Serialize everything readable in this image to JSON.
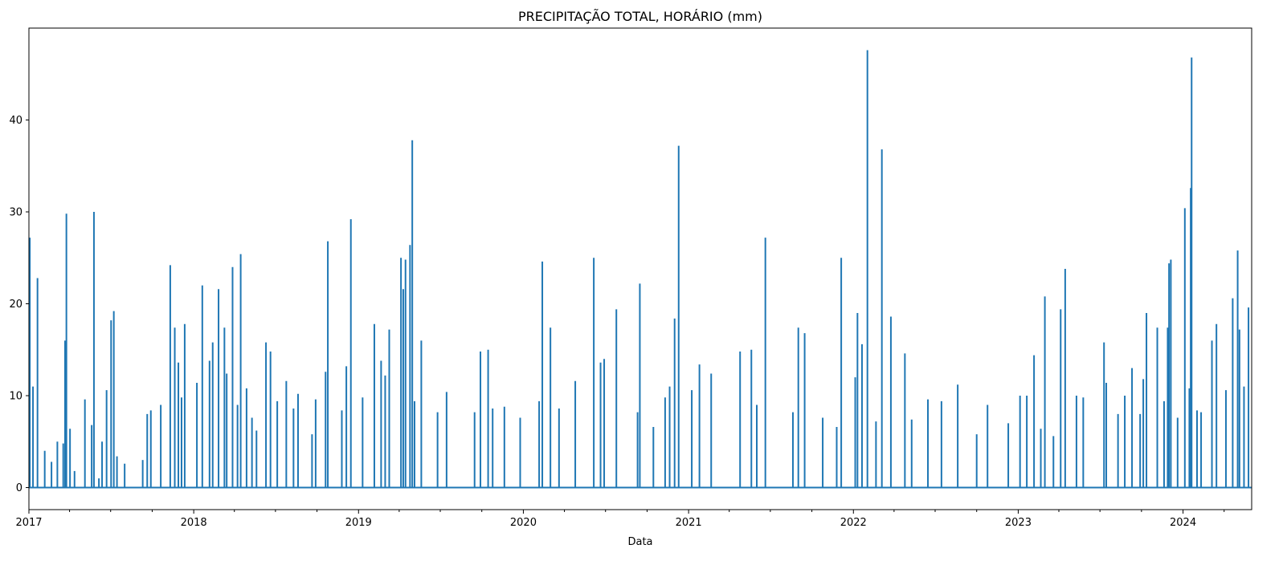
{
  "chart_data": {
    "type": "line",
    "title": "PRECIPITAÇÃO TOTAL, HORÁRIO (mm)",
    "xlabel": "Data",
    "ylabel": "",
    "grid": false,
    "legend": "none",
    "series_color": "#1f77b4",
    "x_range": [
      "2017-01-01",
      "2024-06-01"
    ],
    "ylim": [
      -2.4,
      50
    ],
    "x_ticks": [
      "2017",
      "2018",
      "2019",
      "2020",
      "2021",
      "2022",
      "2023",
      "2024"
    ],
    "y_ticks": [
      0,
      10,
      20,
      30,
      40
    ],
    "series": [
      {
        "peaks": [
          [
            "2017-01-03",
            27.2
          ],
          [
            "2017-01-10",
            11.0
          ],
          [
            "2017-01-20",
            22.8
          ],
          [
            "2017-02-05",
            4.0
          ],
          [
            "2017-02-20",
            2.8
          ],
          [
            "2017-03-05",
            5.0
          ],
          [
            "2017-03-18",
            4.8
          ],
          [
            "2017-03-22",
            16.0
          ],
          [
            "2017-03-25",
            29.8
          ],
          [
            "2017-04-02",
            6.4
          ],
          [
            "2017-04-12",
            1.8
          ],
          [
            "2017-05-05",
            9.6
          ],
          [
            "2017-05-20",
            6.8
          ],
          [
            "2017-05-25",
            30.0
          ],
          [
            "2017-06-05",
            1.0
          ],
          [
            "2017-06-12",
            5.0
          ],
          [
            "2017-06-22",
            10.6
          ],
          [
            "2017-07-02",
            18.2
          ],
          [
            "2017-07-08",
            19.2
          ],
          [
            "2017-07-15",
            3.4
          ],
          [
            "2017-08-01",
            2.6
          ],
          [
            "2017-09-10",
            3.0
          ],
          [
            "2017-09-20",
            8.0
          ],
          [
            "2017-09-28",
            8.4
          ],
          [
            "2017-10-20",
            9.0
          ],
          [
            "2017-11-10",
            24.2
          ],
          [
            "2017-11-20",
            17.4
          ],
          [
            "2017-11-28",
            13.6
          ],
          [
            "2017-12-05",
            9.8
          ],
          [
            "2017-12-12",
            17.8
          ],
          [
            "2018-01-08",
            11.4
          ],
          [
            "2018-01-20",
            22.0
          ],
          [
            "2018-02-05",
            13.8
          ],
          [
            "2018-02-12",
            15.8
          ],
          [
            "2018-02-25",
            21.6
          ],
          [
            "2018-03-10",
            17.4
          ],
          [
            "2018-03-15",
            12.4
          ],
          [
            "2018-03-28",
            24.0
          ],
          [
            "2018-04-08",
            9.0
          ],
          [
            "2018-04-15",
            25.4
          ],
          [
            "2018-04-28",
            10.8
          ],
          [
            "2018-05-10",
            7.6
          ],
          [
            "2018-05-20",
            6.2
          ],
          [
            "2018-06-10",
            15.8
          ],
          [
            "2018-06-20",
            14.8
          ],
          [
            "2018-07-05",
            9.4
          ],
          [
            "2018-07-25",
            11.6
          ],
          [
            "2018-08-10",
            8.6
          ],
          [
            "2018-08-20",
            10.2
          ],
          [
            "2018-09-20",
            5.8
          ],
          [
            "2018-09-28",
            9.6
          ],
          [
            "2018-10-20",
            12.6
          ],
          [
            "2018-10-25",
            26.8
          ],
          [
            "2018-11-25",
            8.4
          ],
          [
            "2018-12-05",
            13.2
          ],
          [
            "2018-12-15",
            29.2
          ],
          [
            "2019-01-10",
            9.8
          ],
          [
            "2019-02-05",
            17.8
          ],
          [
            "2019-02-20",
            13.8
          ],
          [
            "2019-03-01",
            12.2
          ],
          [
            "2019-03-10",
            17.2
          ],
          [
            "2019-04-05",
            25.0
          ],
          [
            "2019-04-10",
            21.6
          ],
          [
            "2019-04-15",
            24.8
          ],
          [
            "2019-04-25",
            26.4
          ],
          [
            "2019-04-30",
            37.8
          ],
          [
            "2019-05-05",
            9.4
          ],
          [
            "2019-05-20",
            16.0
          ],
          [
            "2019-06-25",
            8.2
          ],
          [
            "2019-07-15",
            10.4
          ],
          [
            "2019-09-15",
            8.2
          ],
          [
            "2019-09-28",
            14.8
          ],
          [
            "2019-10-15",
            15.0
          ],
          [
            "2019-10-25",
            8.6
          ],
          [
            "2019-11-20",
            8.8
          ],
          [
            "2019-12-25",
            7.6
          ],
          [
            "2020-02-05",
            9.4
          ],
          [
            "2020-02-12",
            24.6
          ],
          [
            "2020-03-01",
            17.4
          ],
          [
            "2020-03-20",
            8.6
          ],
          [
            "2020-04-25",
            11.6
          ],
          [
            "2020-06-05",
            25.0
          ],
          [
            "2020-06-20",
            13.6
          ],
          [
            "2020-06-28",
            14.0
          ],
          [
            "2020-07-25",
            19.4
          ],
          [
            "2020-09-10",
            8.2
          ],
          [
            "2020-09-15",
            22.2
          ],
          [
            "2020-10-15",
            6.6
          ],
          [
            "2020-11-10",
            9.8
          ],
          [
            "2020-11-20",
            11.0
          ],
          [
            "2020-12-01",
            18.4
          ],
          [
            "2020-12-10",
            37.2
          ],
          [
            "2021-01-08",
            10.6
          ],
          [
            "2021-01-25",
            13.4
          ],
          [
            "2021-02-20",
            12.4
          ],
          [
            "2021-04-25",
            14.8
          ],
          [
            "2021-05-20",
            15.0
          ],
          [
            "2021-06-01",
            9.0
          ],
          [
            "2021-06-20",
            27.2
          ],
          [
            "2021-08-20",
            8.2
          ],
          [
            "2021-09-01",
            17.4
          ],
          [
            "2021-09-15",
            16.8
          ],
          [
            "2021-10-25",
            7.6
          ],
          [
            "2021-11-25",
            6.6
          ],
          [
            "2021-12-05",
            25.0
          ],
          [
            "2022-01-05",
            12.0
          ],
          [
            "2022-01-10",
            19.0
          ],
          [
            "2022-01-20",
            15.6
          ],
          [
            "2022-02-01",
            47.6
          ],
          [
            "2022-02-20",
            7.2
          ],
          [
            "2022-03-05",
            36.8
          ],
          [
            "2022-03-25",
            18.6
          ],
          [
            "2022-04-25",
            14.6
          ],
          [
            "2022-05-10",
            7.4
          ],
          [
            "2022-06-15",
            9.6
          ],
          [
            "2022-07-15",
            9.4
          ],
          [
            "2022-08-20",
            11.2
          ],
          [
            "2022-10-01",
            5.8
          ],
          [
            "2022-10-25",
            9.0
          ],
          [
            "2022-12-10",
            7.0
          ],
          [
            "2023-01-05",
            10.0
          ],
          [
            "2023-01-20",
            10.0
          ],
          [
            "2023-02-05",
            14.4
          ],
          [
            "2023-02-20",
            6.4
          ],
          [
            "2023-03-01",
            20.8
          ],
          [
            "2023-03-20",
            5.6
          ],
          [
            "2023-04-05",
            19.4
          ],
          [
            "2023-04-15",
            23.8
          ],
          [
            "2023-05-10",
            10.0
          ],
          [
            "2023-05-25",
            9.8
          ],
          [
            "2023-07-10",
            15.8
          ],
          [
            "2023-07-15",
            11.4
          ],
          [
            "2023-08-10",
            8.0
          ],
          [
            "2023-08-25",
            10.0
          ],
          [
            "2023-09-10",
            13.0
          ],
          [
            "2023-09-28",
            8.0
          ],
          [
            "2023-10-05",
            11.8
          ],
          [
            "2023-10-12",
            19.0
          ],
          [
            "2023-11-05",
            17.4
          ],
          [
            "2023-11-20",
            9.4
          ],
          [
            "2023-11-28",
            17.4
          ],
          [
            "2023-12-01",
            24.4
          ],
          [
            "2023-12-05",
            24.8
          ],
          [
            "2023-12-20",
            7.6
          ],
          [
            "2024-01-05",
            30.4
          ],
          [
            "2024-01-15",
            10.8
          ],
          [
            "2024-01-18",
            32.6
          ],
          [
            "2024-01-20",
            46.8
          ],
          [
            "2024-02-01",
            8.4
          ],
          [
            "2024-02-10",
            8.2
          ],
          [
            "2024-03-05",
            16.0
          ],
          [
            "2024-03-15",
            17.8
          ],
          [
            "2024-04-05",
            10.6
          ],
          [
            "2024-04-20",
            20.6
          ],
          [
            "2024-05-01",
            25.8
          ],
          [
            "2024-05-05",
            17.2
          ],
          [
            "2024-05-15",
            11.0
          ],
          [
            "2024-05-25",
            19.6
          ]
        ]
      }
    ]
  }
}
